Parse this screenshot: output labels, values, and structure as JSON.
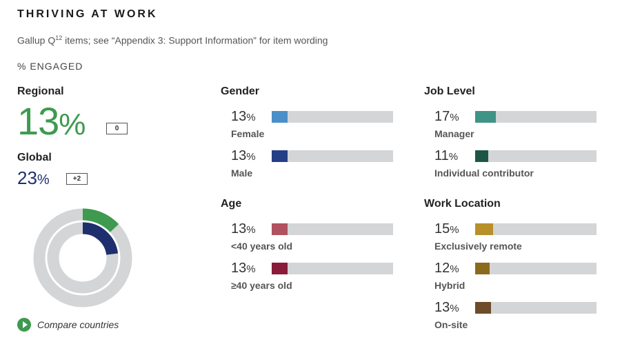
{
  "title": "THRIVING AT WORK",
  "subtitle_pre": "Gallup Q",
  "subtitle_sup": "12",
  "subtitle_post": " items; see “Appendix 3: Support Information” for item wording",
  "metric_label": "% ENGAGED",
  "regional": {
    "label": "Regional",
    "value": "13",
    "unit": "%",
    "change": "0",
    "color": "#3d9a4f"
  },
  "global": {
    "label": "Global",
    "value": "23",
    "unit": "%",
    "change": "+2",
    "color": "#1e2f6e"
  },
  "compare_label": "Compare countries",
  "track_color": "#d3d5d7",
  "chart_data": {
    "type": "bar",
    "ylim": [
      0,
      100
    ],
    "donut": {
      "outer_value": 13,
      "inner_value": 23
    },
    "groups": [
      {
        "title": "Gender",
        "items": [
          {
            "label": "Female",
            "value": 13,
            "color": "#4a8fc9"
          },
          {
            "label": "Male",
            "value": 13,
            "color": "#253f86"
          }
        ]
      },
      {
        "title": "Age",
        "items": [
          {
            "label": "<40 years old",
            "value": 13,
            "color": "#b0535e"
          },
          {
            "label": "≥40 years old",
            "value": 13,
            "color": "#8a1b3b"
          }
        ]
      },
      {
        "title": "Job Level",
        "items": [
          {
            "label": "Manager",
            "value": 17,
            "color": "#3f9486"
          },
          {
            "label": "Individual contributor",
            "value": 11,
            "color": "#1d5647"
          }
        ]
      },
      {
        "title": "Work Location",
        "items": [
          {
            "label": "Exclusively remote",
            "value": 15,
            "color": "#b8902a"
          },
          {
            "label": "Hybrid",
            "value": 12,
            "color": "#8a6b1d"
          },
          {
            "label": "On-site",
            "value": 13,
            "color": "#6e4c2a"
          }
        ]
      }
    ]
  }
}
